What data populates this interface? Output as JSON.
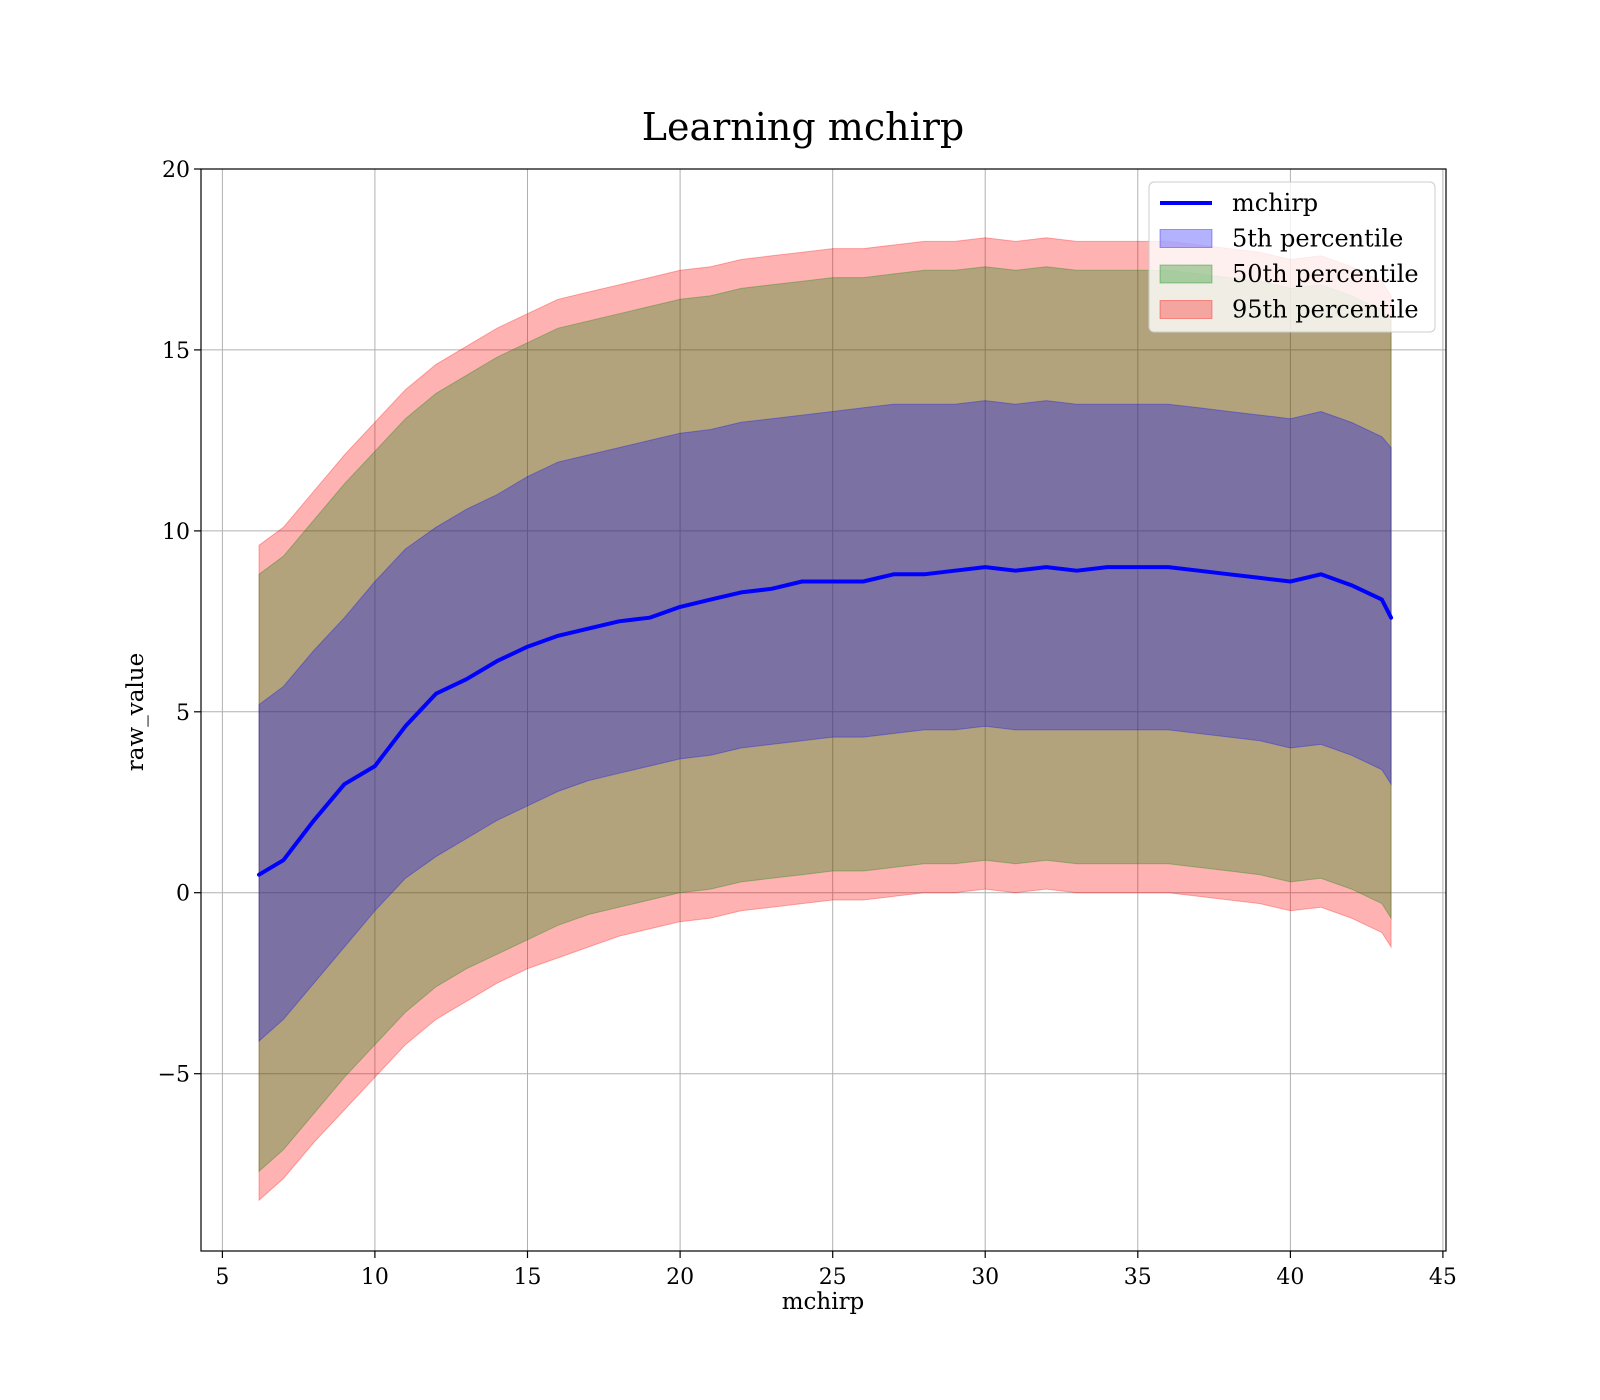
{
  "chart_data": {
    "type": "line",
    "title": "Learning mchirp",
    "xlabel": "mchirp",
    "ylabel": "raw_value",
    "xlim": [
      4.3,
      45.1
    ],
    "ylim": [
      -9.9,
      20
    ],
    "xticks": [
      5,
      10,
      15,
      20,
      25,
      30,
      35,
      40,
      45
    ],
    "yticks": [
      -5,
      0,
      5,
      10,
      15,
      20
    ],
    "ytick_labels": [
      "−5",
      "0",
      "5",
      "10",
      "15",
      "20"
    ],
    "grid": true,
    "legend_position": "top-right",
    "x": [
      6.2,
      7,
      8,
      9,
      10,
      11,
      12,
      13,
      14,
      15,
      16,
      17,
      18,
      19,
      20,
      21,
      22,
      23,
      24,
      25,
      26,
      27,
      28,
      29,
      30,
      31,
      32,
      33,
      34,
      35,
      36,
      37,
      38,
      39,
      40,
      41,
      42,
      43,
      43.3
    ],
    "series": [
      {
        "name": "mchirp",
        "kind": "line",
        "color": "#0000ff",
        "values": [
          0.5,
          0.9,
          2.0,
          3.0,
          3.5,
          4.6,
          5.5,
          5.9,
          6.4,
          6.8,
          7.1,
          7.3,
          7.5,
          7.6,
          7.9,
          8.1,
          8.3,
          8.4,
          8.6,
          8.6,
          8.6,
          8.8,
          8.8,
          8.9,
          9.0,
          8.9,
          9.0,
          8.9,
          9.0,
          9.0,
          9.0,
          8.9,
          8.8,
          8.7,
          8.6,
          8.8,
          8.5,
          8.1,
          7.6
        ]
      },
      {
        "name": "5th percentile",
        "kind": "band",
        "color": "#0000ff",
        "lower": [
          -4.1,
          -3.5,
          -2.5,
          -1.5,
          -0.5,
          0.4,
          1.0,
          1.5,
          2.0,
          2.4,
          2.8,
          3.1,
          3.3,
          3.5,
          3.7,
          3.8,
          4.0,
          4.1,
          4.2,
          4.3,
          4.3,
          4.4,
          4.5,
          4.5,
          4.6,
          4.5,
          4.5,
          4.5,
          4.5,
          4.5,
          4.5,
          4.4,
          4.3,
          4.2,
          4.0,
          4.1,
          3.8,
          3.4,
          3.0
        ],
        "upper": [
          5.2,
          5.7,
          6.7,
          7.6,
          8.6,
          9.5,
          10.1,
          10.6,
          11.0,
          11.5,
          11.9,
          12.1,
          12.3,
          12.5,
          12.7,
          12.8,
          13.0,
          13.1,
          13.2,
          13.3,
          13.4,
          13.5,
          13.5,
          13.5,
          13.6,
          13.5,
          13.6,
          13.5,
          13.5,
          13.5,
          13.5,
          13.4,
          13.3,
          13.2,
          13.1,
          13.3,
          13.0,
          12.6,
          12.3
        ]
      },
      {
        "name": "50th percentile",
        "kind": "band",
        "color": "#008000",
        "lower": [
          -7.7,
          -7.1,
          -6.1,
          -5.1,
          -4.2,
          -3.3,
          -2.6,
          -2.1,
          -1.7,
          -1.3,
          -0.9,
          -0.6,
          -0.4,
          -0.2,
          0.0,
          0.1,
          0.3,
          0.4,
          0.5,
          0.6,
          0.6,
          0.7,
          0.8,
          0.8,
          0.9,
          0.8,
          0.9,
          0.8,
          0.8,
          0.8,
          0.8,
          0.7,
          0.6,
          0.5,
          0.3,
          0.4,
          0.1,
          -0.3,
          -0.7
        ],
        "upper": [
          8.8,
          9.3,
          10.3,
          11.3,
          12.2,
          13.1,
          13.8,
          14.3,
          14.8,
          15.2,
          15.6,
          15.8,
          16.0,
          16.2,
          16.4,
          16.5,
          16.7,
          16.8,
          16.9,
          17.0,
          17.0,
          17.1,
          17.2,
          17.2,
          17.3,
          17.2,
          17.3,
          17.2,
          17.2,
          17.2,
          17.2,
          17.1,
          17.0,
          16.9,
          16.7,
          16.8,
          16.5,
          16.1,
          15.8
        ]
      },
      {
        "name": "95th percentile",
        "kind": "band",
        "color": "#ff0000",
        "lower": [
          -8.5,
          -7.9,
          -6.9,
          -6.0,
          -5.1,
          -4.2,
          -3.5,
          -3.0,
          -2.5,
          -2.1,
          -1.8,
          -1.5,
          -1.2,
          -1.0,
          -0.8,
          -0.7,
          -0.5,
          -0.4,
          -0.3,
          -0.2,
          -0.2,
          -0.1,
          0.0,
          0.0,
          0.1,
          0.0,
          0.1,
          0.0,
          0.0,
          0.0,
          0.0,
          -0.1,
          -0.2,
          -0.3,
          -0.5,
          -0.4,
          -0.7,
          -1.1,
          -1.5
        ],
        "upper": [
          9.6,
          10.1,
          11.1,
          12.1,
          13.0,
          13.9,
          14.6,
          15.1,
          15.6,
          16.0,
          16.4,
          16.6,
          16.8,
          17.0,
          17.2,
          17.3,
          17.5,
          17.6,
          17.7,
          17.8,
          17.8,
          17.9,
          18.0,
          18.0,
          18.1,
          18.0,
          18.1,
          18.0,
          18.0,
          18.0,
          18.0,
          17.9,
          17.8,
          17.7,
          17.5,
          17.6,
          17.3,
          16.9,
          16.5
        ]
      }
    ]
  }
}
